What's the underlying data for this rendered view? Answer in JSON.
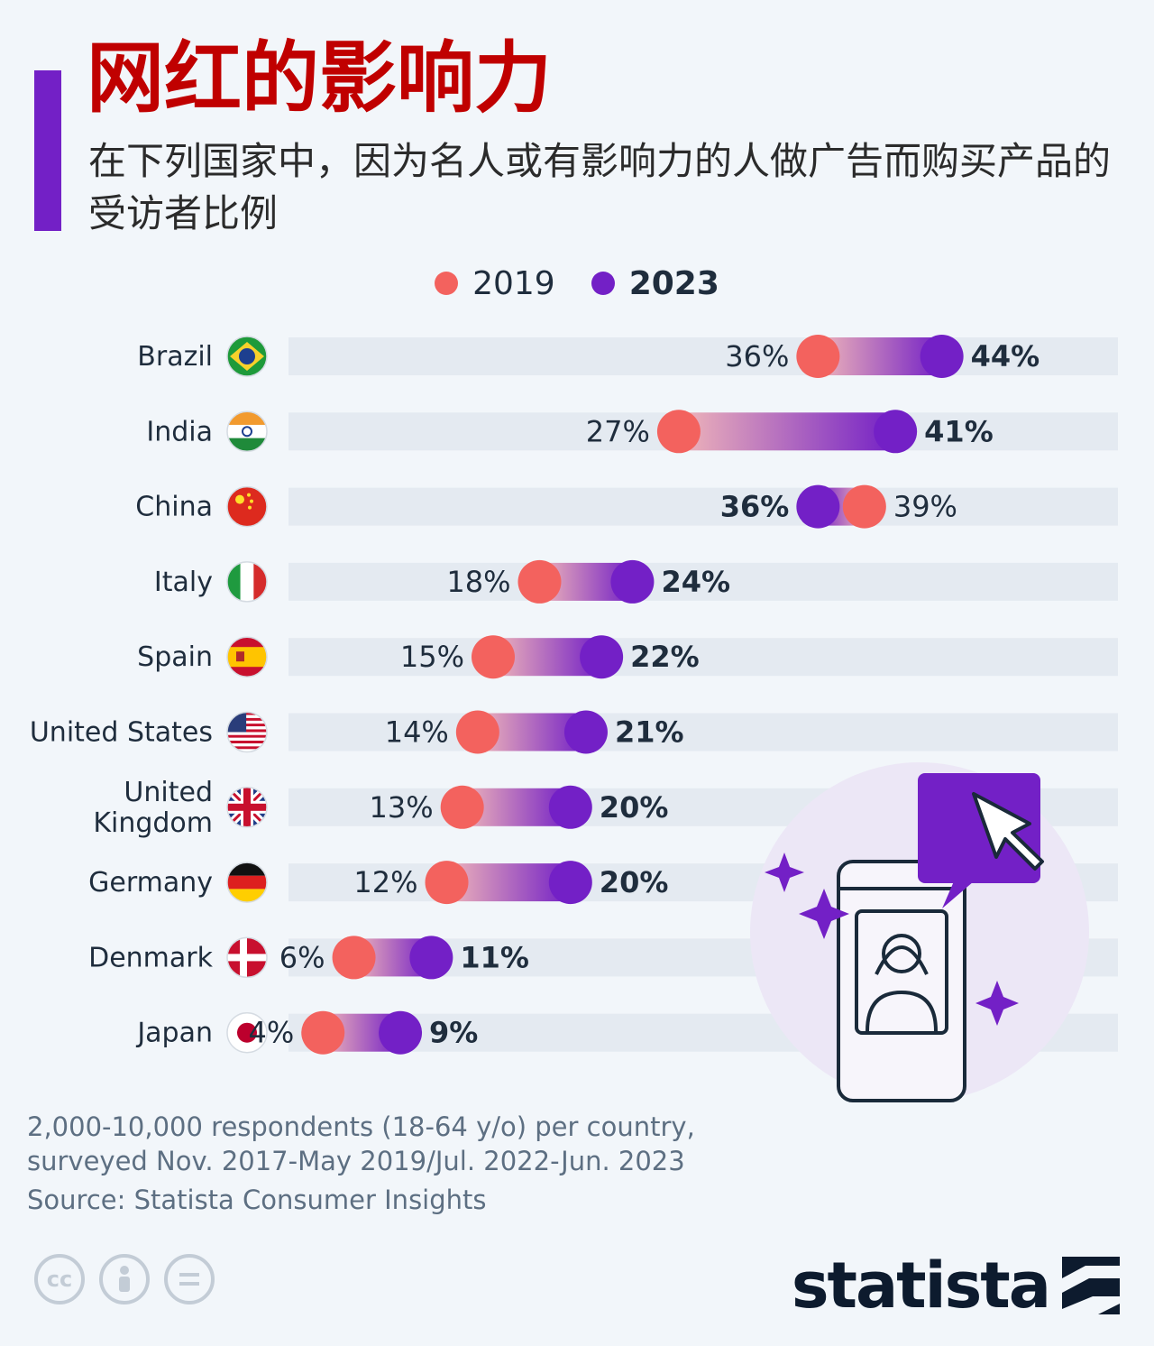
{
  "title": "网红的影响力",
  "subtitle": "在下列国家中，因为名人或有影响力的人做广告而购买产品的受访者比例",
  "legend": [
    {
      "label": "2019"
    },
    {
      "label": "2023"
    }
  ],
  "colors": {
    "title": "#c00000",
    "accent": "#7320c6",
    "series_2019": "#f3625e",
    "series_2023": "#7320c6",
    "track": "#e4eaf1",
    "text": "#1f2d3d",
    "footnote": "#5d6f82"
  },
  "chart_data": {
    "type": "dumbbell",
    "categories": [
      "Brazil",
      "India",
      "China",
      "Italy",
      "Spain",
      "United States",
      "United Kingdom",
      "Germany",
      "Denmark",
      "Japan"
    ],
    "category_lines": [
      [
        "Brazil"
      ],
      [
        "India"
      ],
      [
        "China"
      ],
      [
        "Italy"
      ],
      [
        "Spain"
      ],
      [
        "United States"
      ],
      [
        "United",
        "Kingdom"
      ],
      [
        "Germany"
      ],
      [
        "Denmark"
      ],
      [
        "Japan"
      ]
    ],
    "flags": [
      "brazil-flag",
      "india-flag",
      "china-flag",
      "italy-flag",
      "spain-flag",
      "usa-flag",
      "uk-flag",
      "germany-flag",
      "denmark-flag",
      "japan-flag"
    ],
    "series": [
      {
        "name": "2019",
        "values": [
          36,
          27,
          39,
          18,
          15,
          14,
          13,
          12,
          6,
          4
        ]
      },
      {
        "name": "2023",
        "values": [
          44,
          41,
          36,
          24,
          22,
          21,
          20,
          20,
          11,
          9
        ]
      }
    ],
    "unit": "%",
    "xlim": [
      0,
      50
    ]
  },
  "footnote": "2,000-10,000 respondents (18-64 y/o) per country, surveyed Nov. 2017-May 2019/Jul. 2022-Jun. 2023",
  "source": "Source: Statista Consumer Insights",
  "license_icons": [
    "cc-icon",
    "by-icon",
    "nd-icon"
  ],
  "brand": "statista"
}
